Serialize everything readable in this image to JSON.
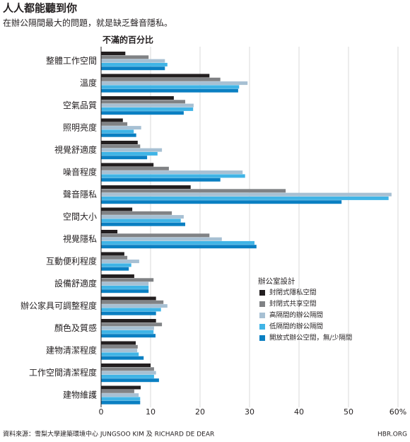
{
  "chart_data": {
    "type": "bar",
    "orientation": "horizontal",
    "title": "人人都能聽到你",
    "subtitle": "在辦公隔間最大的問題，就是缺乏聲音隱私。",
    "x_label": "不滿的百分比",
    "source": "資料來源：雪梨大學建築環境中心 JUNGSOO KIM 及 RICHARD DE DEAR",
    "credit": "HBR.ORG",
    "legend_title": "辦公室設計",
    "categories": [
      "整體工作空間",
      "溫度",
      "空氣品質",
      "照明亮度",
      "視覺舒適度",
      "噪音程度",
      "聲音隱私",
      "空間大小",
      "視覺隱私",
      "互動便利程度",
      "設備舒適度",
      "辦公家具可調整程度",
      "顏色及質感",
      "建物清潔程度",
      "工作空間清潔程度",
      "建物維護"
    ],
    "series": [
      {
        "name": "封閉式隱私空間",
        "color": "#231f20",
        "values": [
          4.9,
          21.9,
          14.7,
          4.4,
          7.4,
          10.6,
          18.1,
          6.3,
          3.3,
          4.7,
          6.7,
          11.1,
          11.1,
          7,
          10,
          8
        ]
      },
      {
        "name": "封閉式共享空間",
        "color": "#808285",
        "values": [
          9.6,
          24.1,
          17,
          5.3,
          7.9,
          13.7,
          37.3,
          14.3,
          21.9,
          5.3,
          10.6,
          12.6,
          12.3,
          7.4,
          10.7,
          6.7
        ]
      },
      {
        "name": "高隔間的辦公隔間",
        "color": "#a7c0d3",
        "values": [
          12.9,
          29.6,
          18.7,
          8.1,
          12.3,
          28.6,
          58.7,
          16.7,
          24.4,
          7.7,
          9.6,
          13.4,
          10.7,
          7.3,
          11.1,
          7.6
        ]
      },
      {
        "name": "低隔間的辦公隔間",
        "color": "#40b4e6",
        "values": [
          13.4,
          27.9,
          18.6,
          6.6,
          11.4,
          29.1,
          58.1,
          16.1,
          31,
          6.1,
          9.6,
          12.1,
          10.6,
          7.6,
          10.7,
          7.9
        ]
      },
      {
        "name": "開放式辦公空間，無/少隔間",
        "color": "#0a7fc2",
        "values": [
          12.9,
          27.7,
          16.7,
          7.1,
          9.3,
          24.1,
          48.6,
          17,
          31.4,
          5.6,
          9.6,
          11.1,
          11,
          8.6,
          11.7,
          7.9
        ]
      }
    ],
    "xlim": [
      0,
      60
    ],
    "xticks": [
      0,
      10,
      20,
      30,
      40,
      50,
      {
        "value": 60,
        "label": "60%"
      }
    ],
    "grid": true
  }
}
